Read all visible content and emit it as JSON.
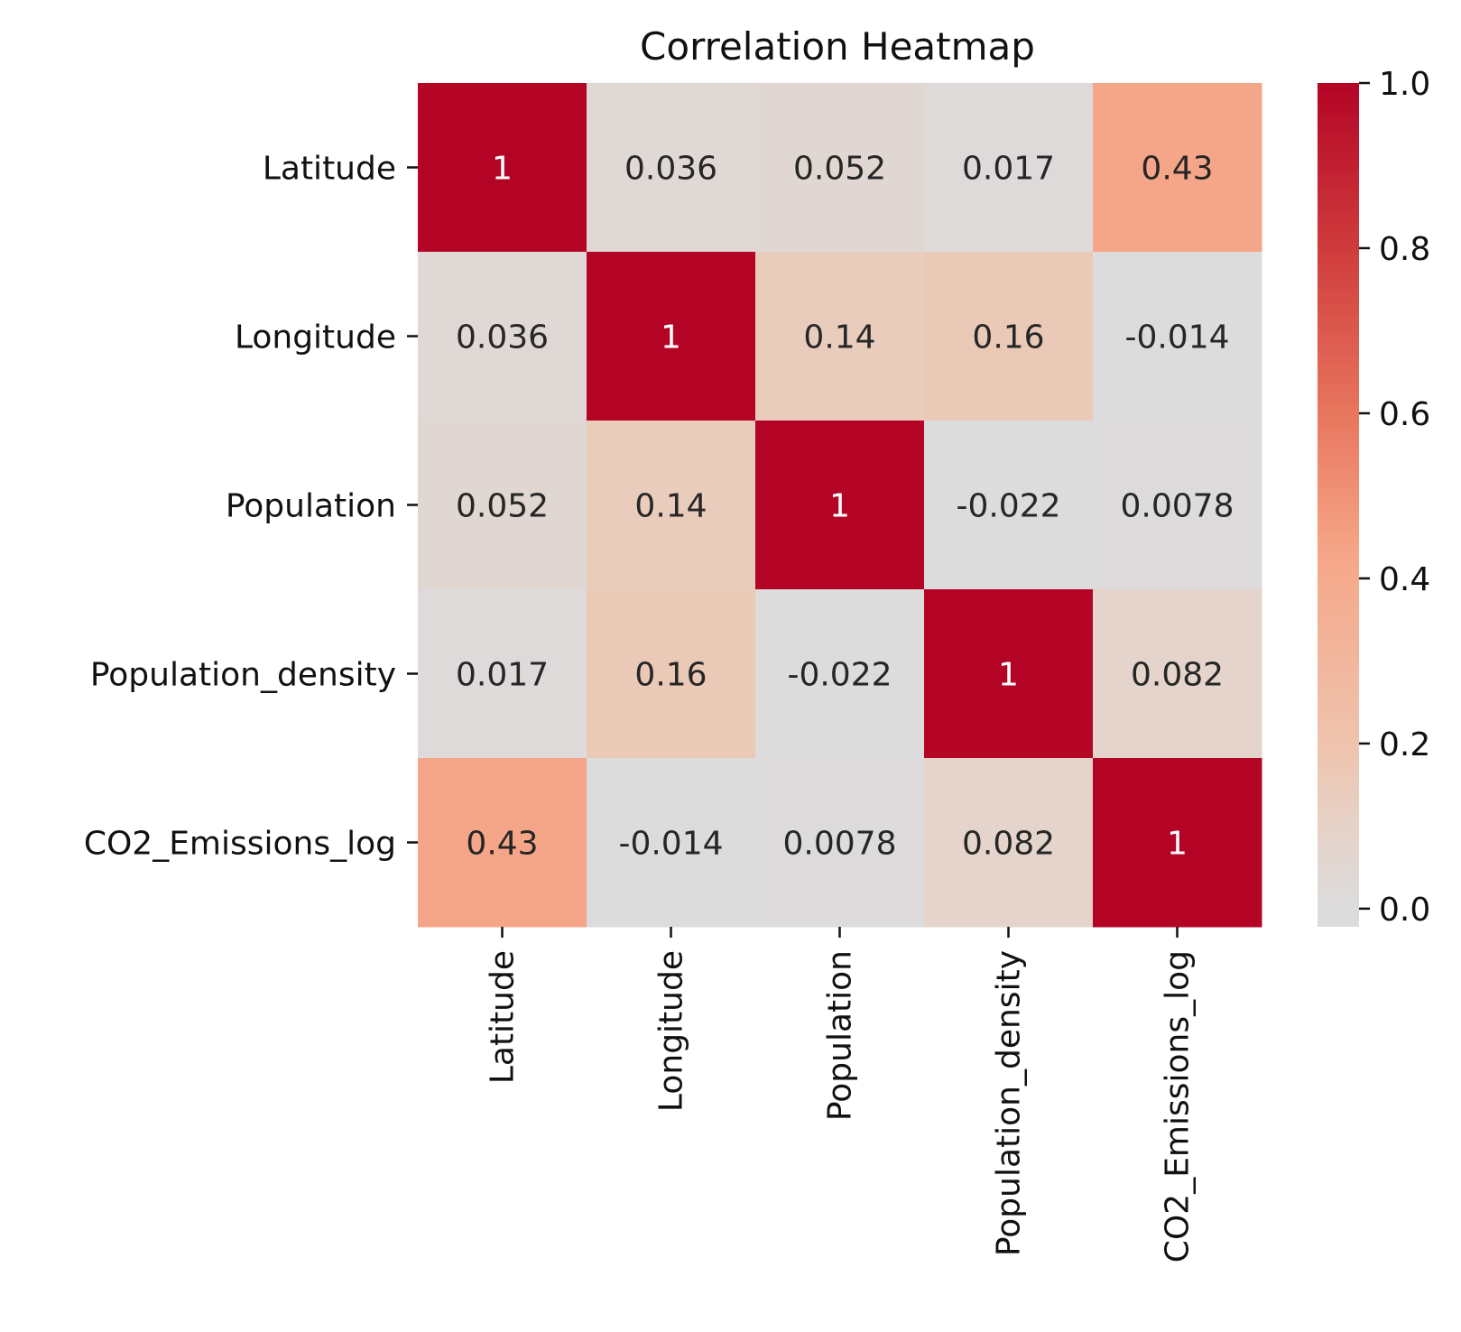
{
  "chart_data": {
    "type": "heatmap",
    "title": "Correlation Heatmap",
    "row_labels": [
      "Latitude",
      "Longitude",
      "Population",
      "Population_density",
      "CO2_Emissions_log"
    ],
    "col_labels": [
      "Latitude",
      "Longitude",
      "Population",
      "Population_density",
      "CO2_Emissions_log"
    ],
    "values": [
      [
        1,
        0.036,
        0.052,
        0.017,
        0.43
      ],
      [
        0.036,
        1,
        0.14,
        0.16,
        -0.014
      ],
      [
        0.052,
        0.14,
        1,
        -0.022,
        0.0078
      ],
      [
        0.017,
        0.16,
        -0.022,
        1,
        0.082
      ],
      [
        0.43,
        -0.014,
        0.0078,
        0.082,
        1
      ]
    ],
    "annotations": [
      [
        "1",
        "0.036",
        "0.052",
        "0.017",
        "0.43"
      ],
      [
        "0.036",
        "1",
        "0.14",
        "0.16",
        "-0.014"
      ],
      [
        "0.052",
        "0.14",
        "1",
        "-0.022",
        "0.0078"
      ],
      [
        "0.017",
        "0.16",
        "-0.022",
        "1",
        "0.082"
      ],
      [
        "0.43",
        "-0.014",
        "0.0078",
        "0.082",
        "1"
      ]
    ],
    "colorbar": {
      "range": [
        -0.022,
        1
      ],
      "ticks": [
        0.0,
        0.2,
        0.4,
        0.6,
        0.8,
        1.0
      ],
      "tick_labels": [
        "0.0",
        "0.2",
        "0.4",
        "0.6",
        "0.8",
        "1.0"
      ]
    },
    "colormap": {
      "name": "coolwarm-center",
      "stops": [
        {
          "v": -0.022,
          "color": "#dddcdc"
        },
        {
          "v": 0.0,
          "color": "#dcdcdd"
        },
        {
          "v": 0.1,
          "color": "#e6d2c7"
        },
        {
          "v": 0.2,
          "color": "#efc3ad"
        },
        {
          "v": 0.43,
          "color": "#f6a688"
        },
        {
          "v": 0.6,
          "color": "#e8765e"
        },
        {
          "v": 0.8,
          "color": "#cf3b3c"
        },
        {
          "v": 1.0,
          "color": "#b40426"
        }
      ]
    }
  }
}
